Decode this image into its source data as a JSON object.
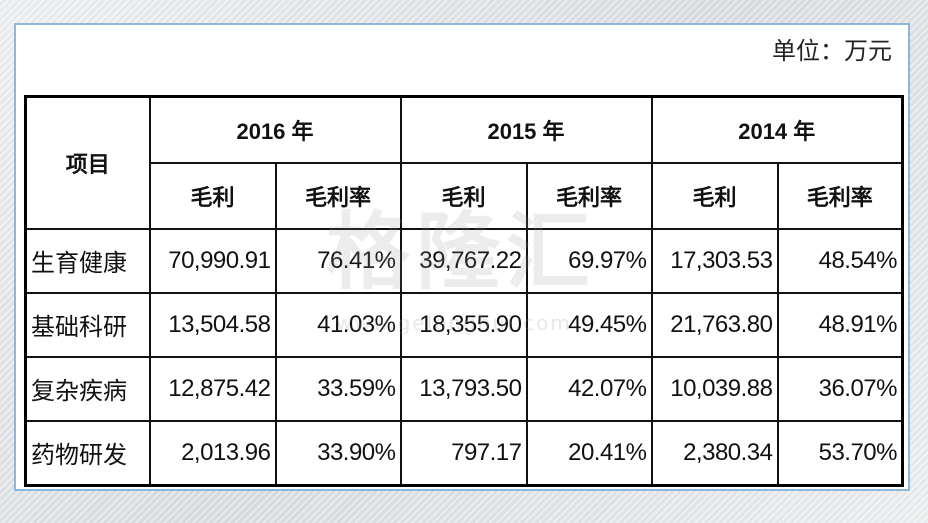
{
  "unit_label": "单位：万元",
  "header": {
    "item_label": "项目",
    "years": [
      "2016 年",
      "2015 年",
      "2014 年"
    ],
    "gross_profit": "毛利",
    "gross_margin": "毛利率"
  },
  "rows": [
    {
      "name": "生育健康",
      "values": [
        "70,990.91",
        "76.41%",
        "39,767.22",
        "69.97%",
        "17,303.53",
        "48.54%"
      ]
    },
    {
      "name": "基础科研",
      "values": [
        "13,504.58",
        "41.03%",
        "18,355.90",
        "49.45%",
        "21,763.80",
        "48.91%"
      ]
    },
    {
      "name": "复杂疾病",
      "values": [
        "12,875.42",
        "33.59%",
        "13,793.50",
        "42.07%",
        "10,039.88",
        "36.07%"
      ]
    },
    {
      "name": "药物研发",
      "values": [
        "2,013.96",
        "33.90%",
        "797.17",
        "20.41%",
        "2,380.34",
        "53.70%"
      ]
    }
  ],
  "watermark": {
    "text": "格隆汇",
    "url": "www.gelonghui.com"
  }
}
